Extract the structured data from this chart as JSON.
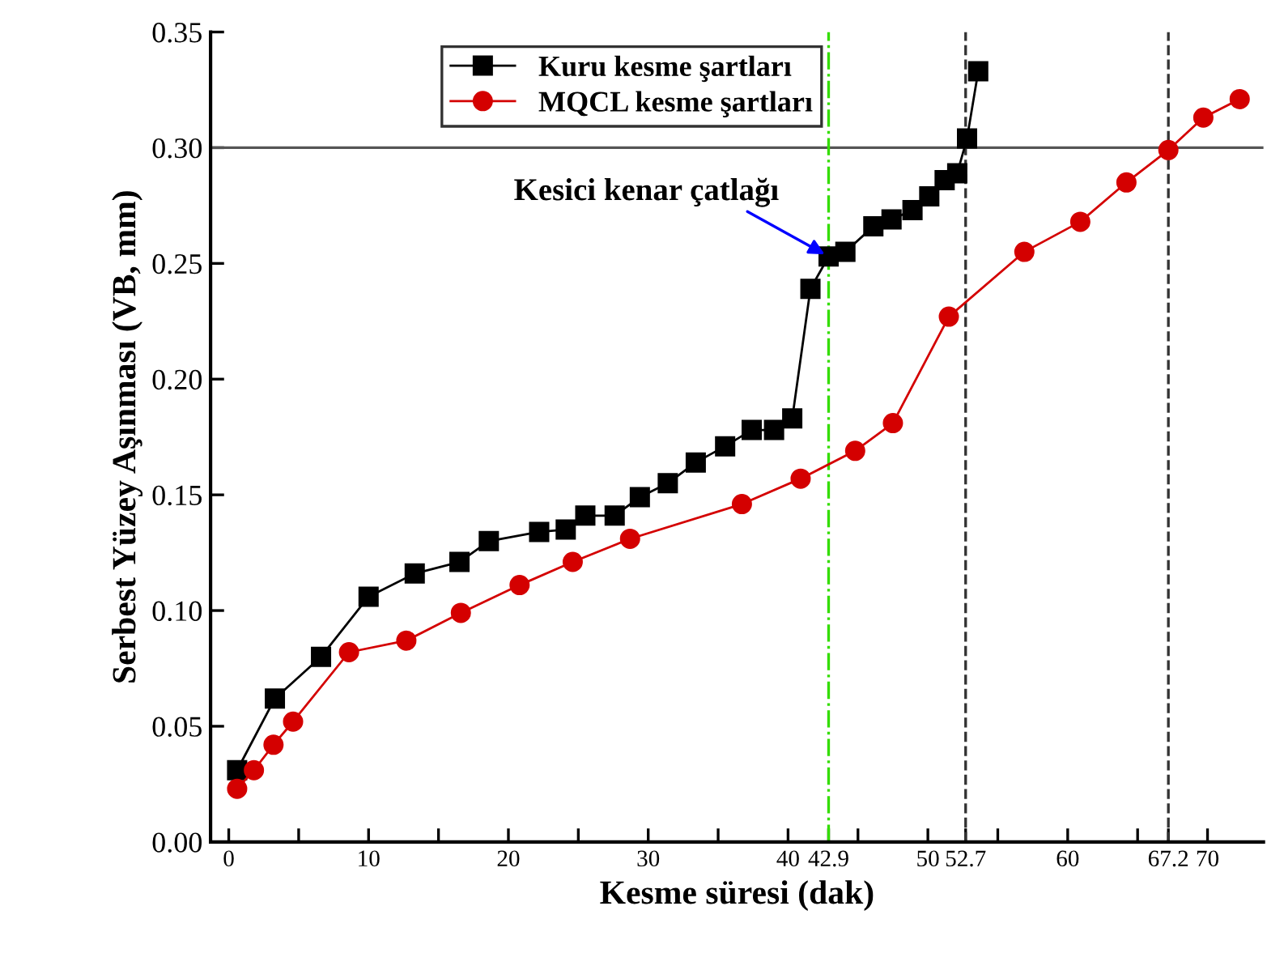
{
  "chart_data": {
    "type": "line",
    "xlabel": "Kesme süresi (dak)",
    "ylabel": "Serbest Yüzey Aşınması (VB, mm)",
    "xlim": [
      -1.3,
      74
    ],
    "ylim": [
      0,
      0.35
    ],
    "xticks": [
      0,
      {
        "value": 5,
        "label": null
      },
      10,
      {
        "value": 15,
        "label": null
      },
      20,
      {
        "value": 25,
        "label": null
      },
      30,
      {
        "value": 35,
        "label": null
      },
      40,
      42.9,
      {
        "value": 45,
        "label": null
      },
      50,
      52.7,
      {
        "value": 55,
        "label": null
      },
      60,
      {
        "value": 65,
        "label": null
      },
      67.2,
      70
    ],
    "yticks": [
      {
        "value": 0,
        "label": "0.00"
      },
      {
        "value": 0.05,
        "label": "0.05"
      },
      {
        "value": 0.1,
        "label": "0.10"
      },
      {
        "value": 0.15,
        "label": "0.15"
      },
      {
        "value": 0.2,
        "label": "0.20"
      },
      {
        "value": 0.25,
        "label": "0.25"
      },
      {
        "value": 0.3,
        "label": "0.30"
      },
      {
        "value": 0.35,
        "label": "0.35"
      }
    ],
    "grid": false,
    "legend": "top",
    "line_style": "solid",
    "series": [
      {
        "name": "Kuru kesme şartları",
        "color": "#000000",
        "marker": "square",
        "x": [
          0.6,
          3.3,
          6.6,
          10.0,
          13.3,
          16.5,
          18.6,
          22.2,
          24.1,
          25.5,
          27.6,
          29.4,
          31.4,
          33.4,
          35.5,
          37.4,
          39.0,
          40.3,
          41.6,
          42.9,
          44.1,
          46.1,
          47.4,
          48.9,
          50.1,
          51.2,
          52.1,
          52.8,
          53.6
        ],
        "values": [
          0.031,
          0.062,
          0.08,
          0.106,
          0.116,
          0.121,
          0.13,
          0.134,
          0.135,
          0.141,
          0.141,
          0.149,
          0.155,
          0.164,
          0.171,
          0.178,
          0.178,
          0.183,
          0.239,
          0.253,
          0.255,
          0.266,
          0.269,
          0.273,
          0.279,
          0.286,
          0.289,
          0.304,
          0.333
        ]
      },
      {
        "name": "MQCL kesme şartları",
        "color": "#d40000",
        "marker": "circle",
        "x": [
          0.6,
          1.8,
          3.2,
          4.6,
          8.6,
          12.7,
          16.6,
          20.8,
          24.6,
          28.7,
          36.7,
          40.9,
          44.8,
          47.5,
          51.5,
          56.9,
          60.9,
          64.2,
          67.2,
          69.7,
          72.3
        ],
        "values": [
          0.023,
          0.031,
          0.042,
          0.052,
          0.082,
          0.087,
          0.099,
          0.111,
          0.121,
          0.131,
          0.146,
          0.157,
          0.169,
          0.181,
          0.227,
          0.255,
          0.268,
          0.285,
          0.299,
          0.313,
          0.321
        ]
      }
    ],
    "ref_lines": [
      {
        "axis": "y",
        "value": 0.3,
        "color": "#555555",
        "line_style": "solid"
      },
      {
        "axis": "x",
        "value": 42.9,
        "color": "#33dd00",
        "line_style": "dashdot"
      },
      {
        "axis": "x",
        "value": 52.7,
        "color": "#333333",
        "line_style": "dashed"
      },
      {
        "axis": "x",
        "value": 67.2,
        "color": "#333333",
        "line_style": "dashed"
      }
    ],
    "annotations": [
      {
        "text": "Kesici kenar çatlağı",
        "x": 42.9,
        "y": 0.253
      }
    ]
  }
}
